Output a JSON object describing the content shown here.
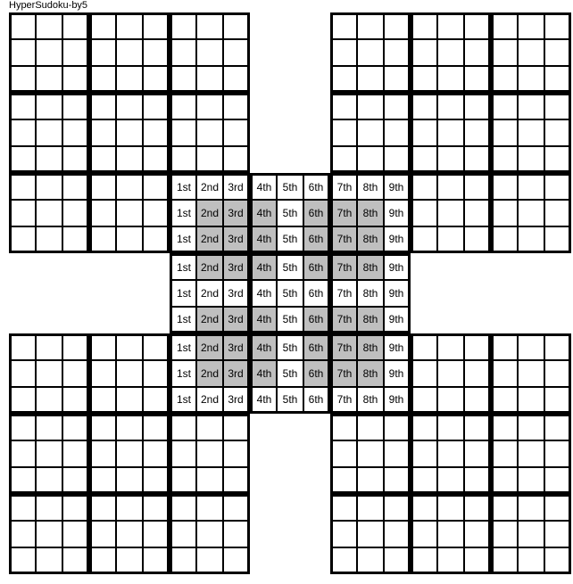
{
  "title": "HyperSudoku-by5",
  "cellSize": 30,
  "gridOriginX": 10,
  "gridOriginY": 14,
  "colors": {
    "background": "#ffffff",
    "shaded": "#bfbfbf",
    "border": "#000000"
  },
  "boards": [
    {
      "row": 0,
      "col": 0
    },
    {
      "row": 0,
      "col": 12
    },
    {
      "row": 6,
      "col": 6
    },
    {
      "row": 12,
      "col": 0
    },
    {
      "row": 12,
      "col": 12
    }
  ],
  "hyperRegionsBoard": {
    "row": 6,
    "col": 6
  },
  "hyperRegions": [
    {
      "rowOffset": 1,
      "colOffset": 1
    },
    {
      "rowOffset": 1,
      "colOffset": 5
    },
    {
      "rowOffset": 5,
      "colOffset": 1
    },
    {
      "rowOffset": 5,
      "colOffset": 5
    }
  ],
  "columnLabels": [
    "1st",
    "2nd",
    "3rd",
    "4th",
    "5th",
    "6th",
    "7th",
    "8th",
    "9th"
  ]
}
